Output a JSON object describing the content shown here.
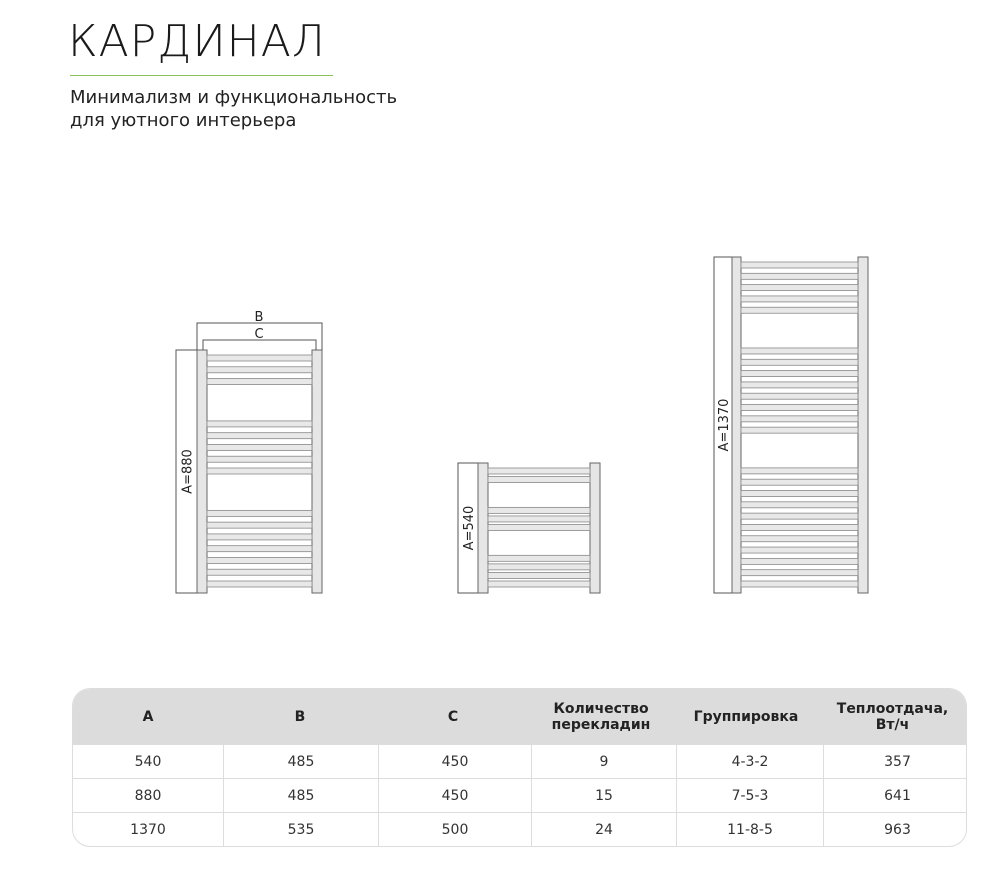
{
  "header": {
    "title": "КАРДИНАЛ",
    "subtitle_lines": [
      "Минимализм и функциональность",
      "для уютного интерьера"
    ]
  },
  "accent_color": "#8bbf5a",
  "drawings": {
    "dim_b": "B",
    "dim_c": "C",
    "radiators": [
      {
        "label": "A=880",
        "grouping": [
          3,
          5,
          7
        ]
      },
      {
        "label": "A=540",
        "grouping": [
          2,
          3,
          4
        ]
      },
      {
        "label": "A=1370",
        "grouping": [
          5,
          8,
          11
        ]
      }
    ]
  },
  "table": {
    "headers": [
      [
        "A"
      ],
      [
        "B"
      ],
      [
        "C"
      ],
      [
        "Количество",
        "перекладин"
      ],
      [
        "Группировка"
      ],
      [
        "Теплоотдача,",
        "Вт/ч"
      ]
    ],
    "rows": [
      [
        "540",
        "485",
        "450",
        "9",
        "4-3-2",
        "357"
      ],
      [
        "880",
        "485",
        "450",
        "15",
        "7-5-3",
        "641"
      ],
      [
        "1370",
        "535",
        "500",
        "24",
        "11-8-5",
        "963"
      ]
    ]
  }
}
